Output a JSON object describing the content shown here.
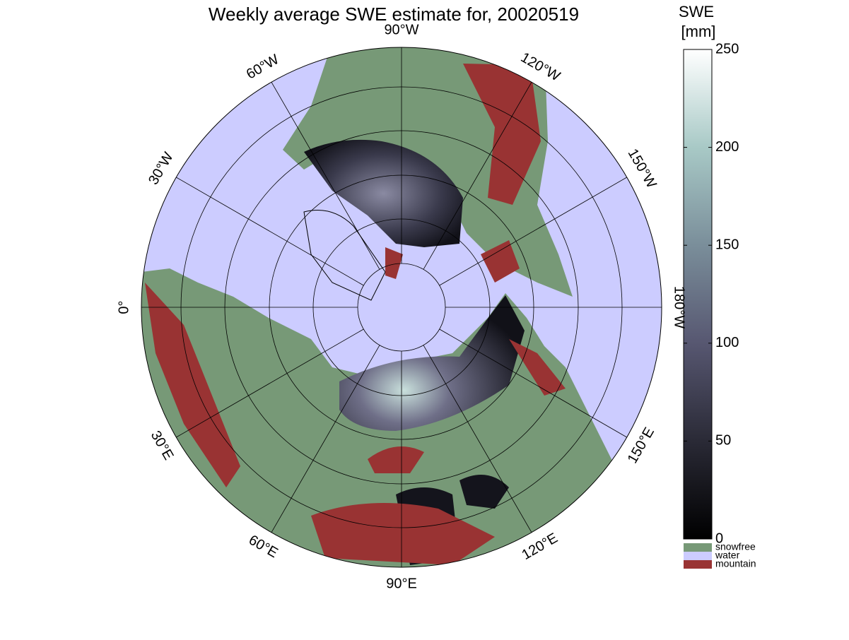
{
  "map": {
    "title": "Weekly average SWE estimate for, 20020519",
    "longitude_labels": [
      "90°W",
      "120°W",
      "150°W",
      "180°W",
      "150°E",
      "120°E",
      "90°E",
      "60°E",
      "30°E",
      "0°",
      "30°W",
      "60°W"
    ],
    "colorbar": {
      "title": [
        "SWE",
        "[mm]"
      ],
      "lim": [
        0,
        250
      ],
      "ticks": [
        0,
        50,
        100,
        150,
        200,
        250
      ]
    },
    "legend": [
      {
        "name": "snowfree",
        "color": "#779977"
      },
      {
        "name": "water",
        "color": "#ccccff"
      },
      {
        "name": "mountain",
        "color": "#993333"
      }
    ]
  }
}
